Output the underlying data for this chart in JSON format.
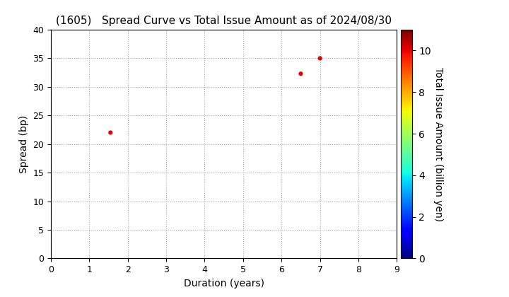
{
  "title": "(1605)   Spread Curve vs Total Issue Amount as of 2024/08/30",
  "xlabel": "Duration (years)",
  "ylabel": "Spread (bp)",
  "colorbar_label": "Total Issue Amount (billion yen)",
  "xlim": [
    0,
    9
  ],
  "ylim": [
    0,
    40
  ],
  "xticks": [
    0,
    1,
    2,
    3,
    4,
    5,
    6,
    7,
    8,
    9
  ],
  "yticks": [
    0,
    5,
    10,
    15,
    20,
    25,
    30,
    35,
    40
  ],
  "colorbar_ticks": [
    0,
    2,
    4,
    6,
    8,
    10
  ],
  "colorbar_vmin": 0,
  "colorbar_vmax": 11,
  "points": [
    {
      "duration": 1.55,
      "spread": 22.0,
      "amount": 10.0
    },
    {
      "duration": 6.5,
      "spread": 32.3,
      "amount": 10.0
    },
    {
      "duration": 7.0,
      "spread": 35.0,
      "amount": 10.0
    }
  ],
  "background_color": "#ffffff",
  "grid_color": "#aaaaaa",
  "title_fontsize": 11,
  "axis_fontsize": 10,
  "colorbar_fontsize": 10,
  "marker_size": 20
}
